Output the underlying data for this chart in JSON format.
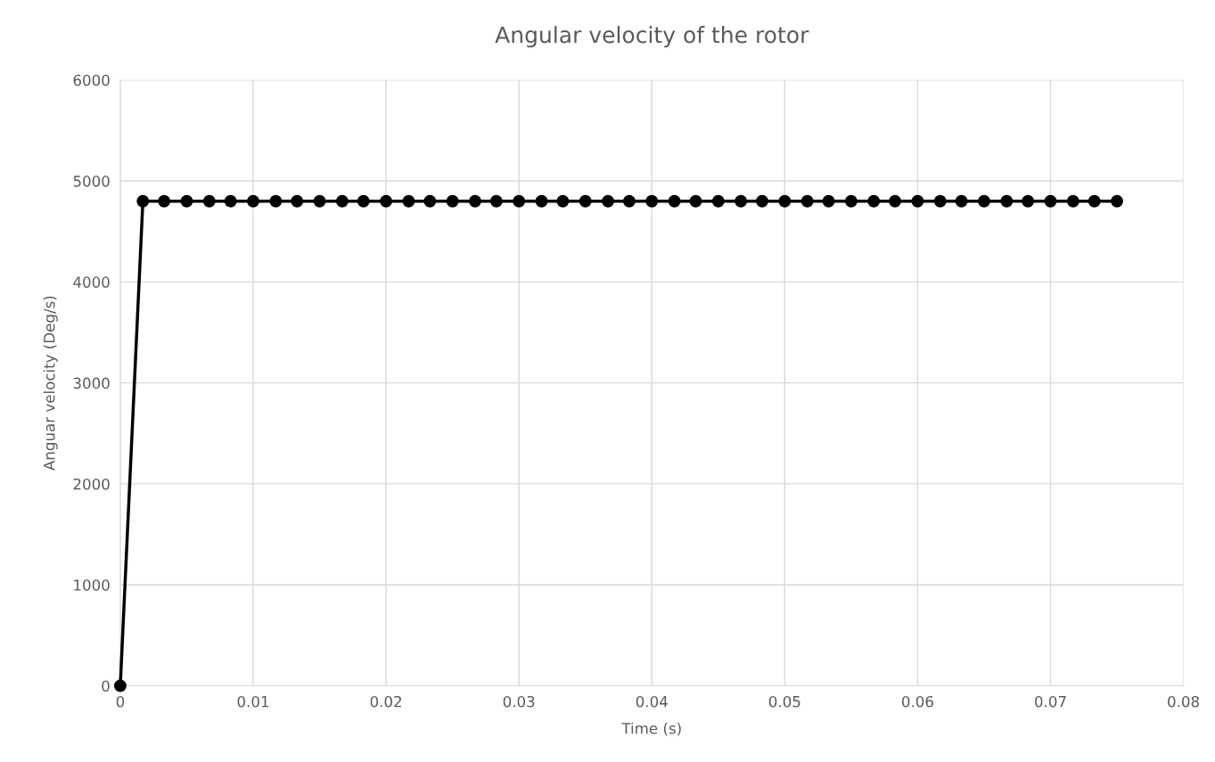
{
  "chart_data": {
    "type": "line",
    "title": "Angular velocity of the rotor",
    "xlabel": "Time (s)",
    "ylabel": "Anguar velocity (Deg/s)",
    "x": [
      0,
      0.0017,
      0.0033,
      0.005,
      0.0067,
      0.0083,
      0.01,
      0.0117,
      0.0133,
      0.015,
      0.0167,
      0.0183,
      0.02,
      0.0217,
      0.0233,
      0.025,
      0.0267,
      0.0283,
      0.03,
      0.0317,
      0.0333,
      0.035,
      0.0367,
      0.0383,
      0.04,
      0.0417,
      0.0433,
      0.045,
      0.0467,
      0.0483,
      0.05,
      0.0517,
      0.0533,
      0.055,
      0.0567,
      0.0583,
      0.06,
      0.0617,
      0.0633,
      0.065,
      0.0667,
      0.0683,
      0.07,
      0.0717,
      0.0733,
      0.075
    ],
    "series": [
      {
        "color": "#000000",
        "values": [
          0,
          4800,
          4800,
          4800,
          4800,
          4800,
          4800,
          4800,
          4800,
          4800,
          4800,
          4800,
          4800,
          4800,
          4800,
          4800,
          4800,
          4800,
          4800,
          4800,
          4800,
          4800,
          4800,
          4800,
          4800,
          4800,
          4800,
          4800,
          4800,
          4800,
          4800,
          4800,
          4800,
          4800,
          4800,
          4800,
          4800,
          4800,
          4800,
          4800,
          4800,
          4800,
          4800,
          4800,
          4800,
          4800
        ]
      }
    ],
    "xlim": [
      0,
      0.08
    ],
    "xticks": [
      0,
      0.01,
      0.02,
      0.03,
      0.04,
      0.05,
      0.06,
      0.07,
      0.08
    ],
    "ylim": [
      0,
      6000
    ],
    "yticks": [
      0,
      1000,
      2000,
      3000,
      4000,
      5000,
      6000
    ],
    "grid": true,
    "marker": "circle",
    "line_style": "solid"
  }
}
